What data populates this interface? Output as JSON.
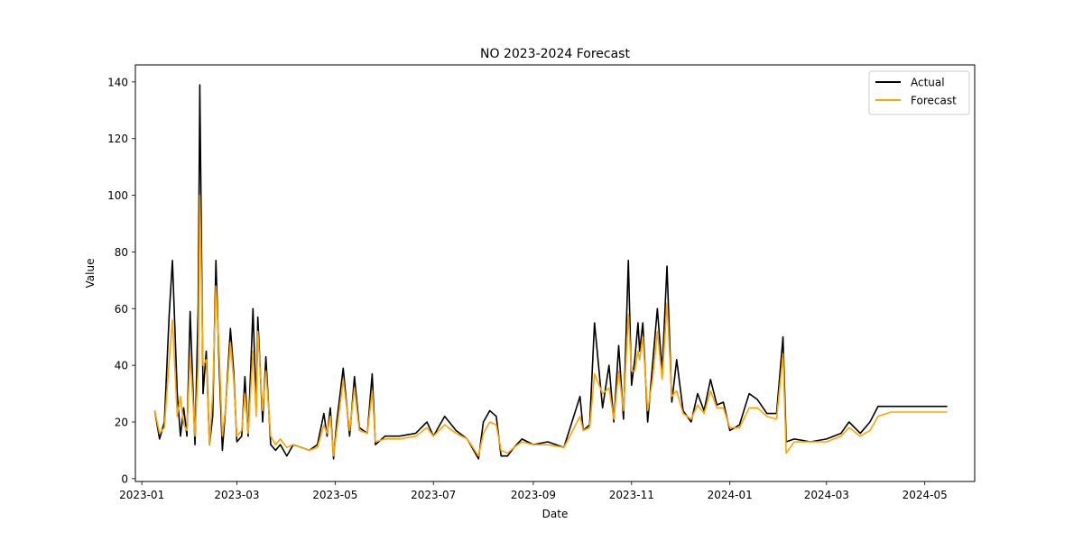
{
  "chart_data": {
    "type": "line",
    "title": "NO 2023-2024 Forecast",
    "xlabel": "Date",
    "ylabel": "Value",
    "xlim": [
      "2022-12-28",
      "2024-06-01"
    ],
    "ylim": [
      -1,
      146
    ],
    "x_ticks": [
      "2023-01",
      "2023-03",
      "2023-05",
      "2023-07",
      "2023-09",
      "2023-11",
      "2024-01",
      "2024-03",
      "2024-05"
    ],
    "y_ticks": [
      0,
      20,
      40,
      60,
      80,
      100,
      120,
      140
    ],
    "legend_position": "top-right",
    "colors": {
      "actual": "#000000",
      "forecast": "#FFA500"
    },
    "series": [
      {
        "name": "Actual",
        "key": "actual",
        "points": [
          [
            "2023-01-09",
            24
          ],
          [
            "2023-01-12",
            14
          ],
          [
            "2023-01-15",
            20
          ],
          [
            "2023-01-18",
            58
          ],
          [
            "2023-01-20",
            77
          ],
          [
            "2023-01-23",
            30
          ],
          [
            "2023-01-25",
            15
          ],
          [
            "2023-01-27",
            25
          ],
          [
            "2023-01-29",
            15
          ],
          [
            "2023-01-31",
            59
          ],
          [
            "2023-02-03",
            12
          ],
          [
            "2023-02-05",
            61
          ],
          [
            "2023-02-06",
            139
          ],
          [
            "2023-02-08",
            30
          ],
          [
            "2023-02-10",
            45
          ],
          [
            "2023-02-12",
            12
          ],
          [
            "2023-02-14",
            22
          ],
          [
            "2023-02-16",
            77
          ],
          [
            "2023-02-18",
            40
          ],
          [
            "2023-02-20",
            10
          ],
          [
            "2023-02-22",
            25
          ],
          [
            "2023-02-25",
            53
          ],
          [
            "2023-02-27",
            38
          ],
          [
            "2023-03-01",
            13
          ],
          [
            "2023-03-04",
            15
          ],
          [
            "2023-03-06",
            36
          ],
          [
            "2023-03-08",
            15
          ],
          [
            "2023-03-11",
            60
          ],
          [
            "2023-03-13",
            25
          ],
          [
            "2023-03-14",
            57
          ],
          [
            "2023-03-17",
            20
          ],
          [
            "2023-03-19",
            43
          ],
          [
            "2023-03-22",
            12
          ],
          [
            "2023-03-25",
            10
          ],
          [
            "2023-03-28",
            12
          ],
          [
            "2023-04-01",
            8
          ],
          [
            "2023-04-05",
            12
          ],
          [
            "2023-04-10",
            11
          ],
          [
            "2023-04-15",
            10
          ],
          [
            "2023-04-20",
            12
          ],
          [
            "2023-04-24",
            23
          ],
          [
            "2023-04-26",
            15
          ],
          [
            "2023-04-28",
            25
          ],
          [
            "2023-04-30",
            7
          ],
          [
            "2023-05-02",
            20
          ],
          [
            "2023-05-06",
            39
          ],
          [
            "2023-05-10",
            15
          ],
          [
            "2023-05-13",
            36
          ],
          [
            "2023-05-16",
            18
          ],
          [
            "2023-05-21",
            16
          ],
          [
            "2023-05-24",
            37
          ],
          [
            "2023-05-26",
            12
          ],
          [
            "2023-06-01",
            15
          ],
          [
            "2023-06-10",
            15
          ],
          [
            "2023-06-20",
            16
          ],
          [
            "2023-06-27",
            20
          ],
          [
            "2023-07-01",
            15
          ],
          [
            "2023-07-08",
            22
          ],
          [
            "2023-07-15",
            17
          ],
          [
            "2023-07-22",
            14
          ],
          [
            "2023-07-29",
            7
          ],
          [
            "2023-08-01",
            20
          ],
          [
            "2023-08-05",
            24
          ],
          [
            "2023-08-09",
            22
          ],
          [
            "2023-08-12",
            8
          ],
          [
            "2023-08-16",
            8
          ],
          [
            "2023-08-20",
            11
          ],
          [
            "2023-08-25",
            14
          ],
          [
            "2023-09-01",
            12
          ],
          [
            "2023-09-10",
            13
          ],
          [
            "2023-09-20",
            11
          ],
          [
            "2023-09-30",
            29
          ],
          [
            "2023-10-02",
            17
          ],
          [
            "2023-10-06",
            19
          ],
          [
            "2023-10-09",
            55
          ],
          [
            "2023-10-14",
            25
          ],
          [
            "2023-10-18",
            40
          ],
          [
            "2023-10-21",
            20
          ],
          [
            "2023-10-24",
            47
          ],
          [
            "2023-10-27",
            21
          ],
          [
            "2023-10-30",
            77
          ],
          [
            "2023-11-01",
            33
          ],
          [
            "2023-11-03",
            42
          ],
          [
            "2023-11-05",
            55
          ],
          [
            "2023-11-06",
            45
          ],
          [
            "2023-11-08",
            55
          ],
          [
            "2023-11-11",
            20
          ],
          [
            "2023-11-14",
            40
          ],
          [
            "2023-11-17",
            60
          ],
          [
            "2023-11-20",
            38
          ],
          [
            "2023-11-23",
            75
          ],
          [
            "2023-11-26",
            27
          ],
          [
            "2023-11-29",
            42
          ],
          [
            "2023-12-03",
            24
          ],
          [
            "2023-12-08",
            20
          ],
          [
            "2023-12-12",
            30
          ],
          [
            "2023-12-16",
            24
          ],
          [
            "2023-12-20",
            35
          ],
          [
            "2023-12-24",
            26
          ],
          [
            "2023-12-28",
            27
          ],
          [
            "2024-01-01",
            17
          ],
          [
            "2024-01-07",
            19
          ],
          [
            "2024-01-13",
            30
          ],
          [
            "2024-01-18",
            28
          ],
          [
            "2024-01-24",
            23
          ],
          [
            "2024-01-30",
            23
          ],
          [
            "2024-02-03",
            50
          ],
          [
            "2024-02-05",
            13
          ],
          [
            "2024-02-10",
            14
          ],
          [
            "2024-02-20",
            13
          ],
          [
            "2024-03-01",
            14
          ],
          [
            "2024-03-10",
            16
          ],
          [
            "2024-03-15",
            20
          ],
          [
            "2024-03-22",
            16
          ],
          [
            "2024-03-28",
            20
          ],
          [
            "2024-04-02",
            25.5
          ],
          [
            "2024-05-15",
            25.5
          ]
        ]
      },
      {
        "name": "Forecast",
        "key": "forecast",
        "points": [
          [
            "2023-01-09",
            24
          ],
          [
            "2023-01-12",
            16
          ],
          [
            "2023-01-15",
            18
          ],
          [
            "2023-01-18",
            42
          ],
          [
            "2023-01-20",
            56
          ],
          [
            "2023-01-23",
            22
          ],
          [
            "2023-01-25",
            29
          ],
          [
            "2023-01-27",
            19
          ],
          [
            "2023-01-29",
            17
          ],
          [
            "2023-01-31",
            44
          ],
          [
            "2023-02-03",
            15
          ],
          [
            "2023-02-05",
            40
          ],
          [
            "2023-02-06",
            100
          ],
          [
            "2023-02-08",
            40
          ],
          [
            "2023-02-10",
            42
          ],
          [
            "2023-02-12",
            12
          ],
          [
            "2023-02-14",
            30
          ],
          [
            "2023-02-16",
            68
          ],
          [
            "2023-02-18",
            45
          ],
          [
            "2023-02-20",
            15
          ],
          [
            "2023-02-22",
            25
          ],
          [
            "2023-02-25",
            48
          ],
          [
            "2023-02-27",
            35
          ],
          [
            "2023-03-01",
            15
          ],
          [
            "2023-03-04",
            17
          ],
          [
            "2023-03-06",
            30
          ],
          [
            "2023-03-08",
            16
          ],
          [
            "2023-03-11",
            45
          ],
          [
            "2023-03-13",
            22
          ],
          [
            "2023-03-14",
            52
          ],
          [
            "2023-03-17",
            24
          ],
          [
            "2023-03-19",
            38
          ],
          [
            "2023-03-22",
            15
          ],
          [
            "2023-03-25",
            12
          ],
          [
            "2023-03-28",
            14
          ],
          [
            "2023-04-01",
            11
          ],
          [
            "2023-04-05",
            12
          ],
          [
            "2023-04-10",
            11
          ],
          [
            "2023-04-15",
            10
          ],
          [
            "2023-04-20",
            11
          ],
          [
            "2023-04-24",
            19
          ],
          [
            "2023-04-26",
            16
          ],
          [
            "2023-04-28",
            22
          ],
          [
            "2023-04-30",
            8
          ],
          [
            "2023-05-02",
            17
          ],
          [
            "2023-05-06",
            35
          ],
          [
            "2023-05-10",
            17
          ],
          [
            "2023-05-13",
            32
          ],
          [
            "2023-05-16",
            17
          ],
          [
            "2023-05-21",
            16
          ],
          [
            "2023-05-24",
            31
          ],
          [
            "2023-05-26",
            13
          ],
          [
            "2023-06-01",
            14
          ],
          [
            "2023-06-10",
            14
          ],
          [
            "2023-06-20",
            15
          ],
          [
            "2023-06-27",
            18
          ],
          [
            "2023-07-01",
            15
          ],
          [
            "2023-07-08",
            19
          ],
          [
            "2023-07-15",
            16
          ],
          [
            "2023-07-22",
            14
          ],
          [
            "2023-07-29",
            8
          ],
          [
            "2023-08-01",
            16
          ],
          [
            "2023-08-05",
            20
          ],
          [
            "2023-08-09",
            19
          ],
          [
            "2023-08-12",
            10
          ],
          [
            "2023-08-16",
            9
          ],
          [
            "2023-08-20",
            11
          ],
          [
            "2023-08-25",
            13
          ],
          [
            "2023-09-01",
            12
          ],
          [
            "2023-09-10",
            12
          ],
          [
            "2023-09-20",
            11
          ],
          [
            "2023-09-30",
            22
          ],
          [
            "2023-10-02",
            17
          ],
          [
            "2023-10-06",
            18
          ],
          [
            "2023-10-09",
            37
          ],
          [
            "2023-10-14",
            30
          ],
          [
            "2023-10-18",
            32
          ],
          [
            "2023-10-21",
            21
          ],
          [
            "2023-10-24",
            38
          ],
          [
            "2023-10-27",
            24
          ],
          [
            "2023-10-30",
            58
          ],
          [
            "2023-11-01",
            38
          ],
          [
            "2023-11-03",
            38
          ],
          [
            "2023-11-05",
            45
          ],
          [
            "2023-11-06",
            42
          ],
          [
            "2023-11-08",
            50
          ],
          [
            "2023-11-11",
            24
          ],
          [
            "2023-11-14",
            35
          ],
          [
            "2023-11-17",
            52
          ],
          [
            "2023-11-20",
            35
          ],
          [
            "2023-11-23",
            62
          ],
          [
            "2023-11-26",
            29
          ],
          [
            "2023-11-29",
            31
          ],
          [
            "2023-12-03",
            23
          ],
          [
            "2023-12-08",
            21
          ],
          [
            "2023-12-12",
            26
          ],
          [
            "2023-12-16",
            23
          ],
          [
            "2023-12-20",
            31
          ],
          [
            "2023-12-24",
            25
          ],
          [
            "2023-12-28",
            25
          ],
          [
            "2024-01-01",
            18
          ],
          [
            "2024-01-07",
            18
          ],
          [
            "2024-01-13",
            25
          ],
          [
            "2024-01-18",
            25
          ],
          [
            "2024-01-24",
            22
          ],
          [
            "2024-01-30",
            21
          ],
          [
            "2024-02-03",
            44
          ],
          [
            "2024-02-05",
            9
          ],
          [
            "2024-02-10",
            13
          ],
          [
            "2024-02-20",
            13
          ],
          [
            "2024-03-01",
            13
          ],
          [
            "2024-03-10",
            15
          ],
          [
            "2024-03-15",
            18
          ],
          [
            "2024-03-22",
            15
          ],
          [
            "2024-03-28",
            17
          ],
          [
            "2024-04-02",
            22
          ],
          [
            "2024-04-10",
            23.5
          ],
          [
            "2024-05-15",
            23.5
          ]
        ]
      }
    ]
  }
}
